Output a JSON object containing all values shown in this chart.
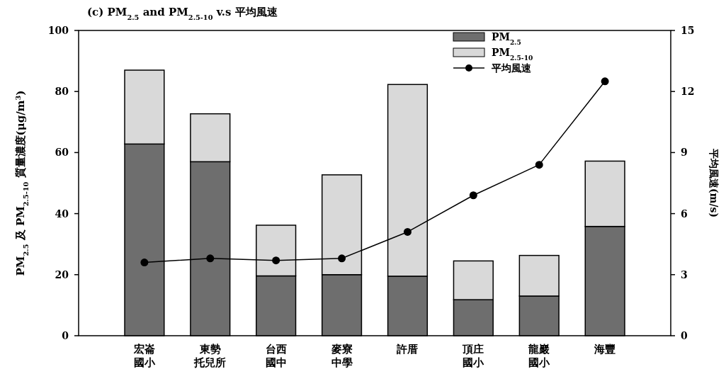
{
  "chart_data": {
    "type": "bar",
    "title": "(c) PM$_{2.5}$ and PM$_{2.5-10}$ v.s 平均風速",
    "ylabel": "PM$_{2.5}$ 及 PM$_{2.5-10}$ 質量濃度(μg/m$^{3}$)",
    "y2label": "平均風速(m/s)",
    "categories": [
      "宏崙國小",
      "東勢托兒所",
      "台西國中",
      "麥寮中學",
      "許厝",
      "頂庄國小",
      "龍巖國小",
      "海豐"
    ],
    "stacked": true,
    "series": [
      {
        "name": "PM$_{2.5}$",
        "color": "#6e6e6e",
        "values": [
          62.8,
          57,
          19.6,
          20,
          19.5,
          11.8,
          13,
          35.8
        ]
      },
      {
        "name": "PM$_{2.5-10}$",
        "color": "#d9d9d9",
        "values": [
          24.2,
          15.7,
          16.6,
          32.7,
          62.8,
          12.7,
          13.3,
          21.4
        ]
      },
      {
        "name": "平均風速",
        "type": "line",
        "axis": "y2",
        "color": "#000000",
        "marker": "circle",
        "values": [
          3.6,
          3.8,
          3.7,
          3.8,
          5.1,
          6.9,
          8.4,
          12.5
        ]
      }
    ],
    "ylim": [
      0,
      100
    ],
    "yticks": [
      0,
      20,
      40,
      60,
      80,
      100
    ],
    "y2lim": [
      0,
      15
    ],
    "y2ticks": [
      0,
      3,
      6,
      9,
      12,
      15
    ],
    "legend": "top right",
    "grid": false
  }
}
